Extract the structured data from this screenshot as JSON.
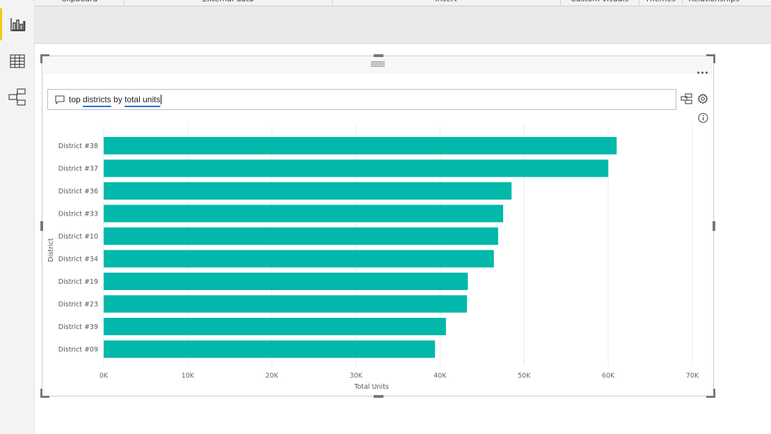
{
  "ribbon": {
    "groups": [
      {
        "label": "Clipboard"
      },
      {
        "label": "External data"
      },
      {
        "label": "Insert"
      },
      {
        "label": "Custom visuals"
      },
      {
        "label": "Themes"
      },
      {
        "label": "Relationships"
      }
    ]
  },
  "left_nav": {
    "items": [
      {
        "icon": "report-view-icon",
        "active": true
      },
      {
        "icon": "data-view-icon",
        "active": false
      },
      {
        "icon": "relationships-view-icon",
        "active": false
      }
    ]
  },
  "qa": {
    "words": [
      "top",
      "districts",
      "by",
      "total units"
    ],
    "underlined": [
      false,
      true,
      false,
      true
    ]
  },
  "colors": {
    "bar": "#01b8aa",
    "accent": "#f2c811",
    "underline": "#1f6fe0"
  },
  "chart_data": {
    "type": "bar",
    "orientation": "horizontal",
    "categories": [
      "District #38",
      "District #37",
      "District #36",
      "District #33",
      "District #10",
      "District #34",
      "District #19",
      "District #23",
      "District #39",
      "District #09"
    ],
    "values": [
      61000,
      60000,
      48500,
      47500,
      46900,
      46400,
      43300,
      43200,
      40700,
      39400
    ],
    "xlabel": "Total Units",
    "ylabel": "District",
    "xlim": [
      0,
      70000
    ],
    "ticks": [
      0,
      10000,
      20000,
      30000,
      40000,
      50000,
      60000,
      70000
    ],
    "tick_labels": [
      "0K",
      "10K",
      "20K",
      "30K",
      "40K",
      "50K",
      "60K",
      "70K"
    ],
    "grid": true
  }
}
